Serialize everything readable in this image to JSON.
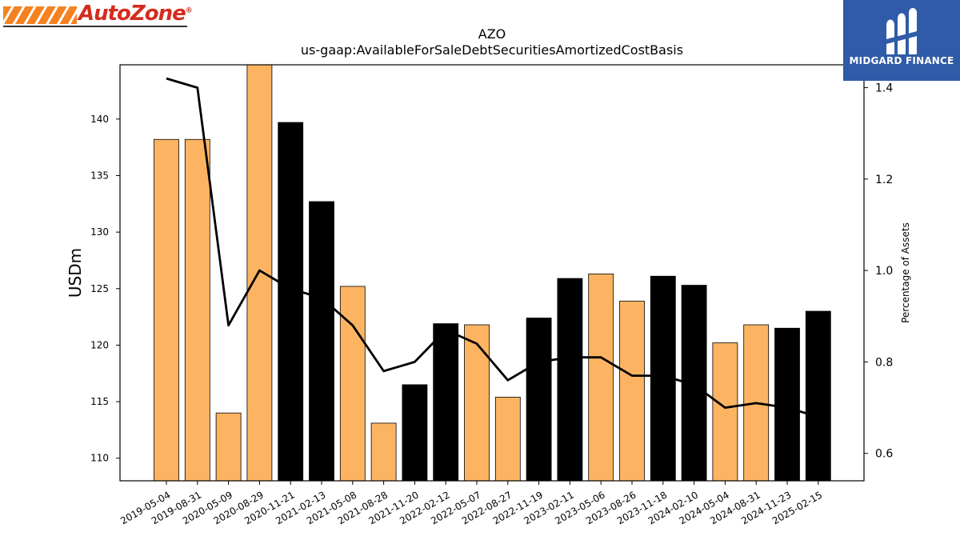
{
  "logos": {
    "left": {
      "text": "AutoZone",
      "mark": "trademark",
      "stripe_color": "#f58220",
      "text_color": "#d52b1e"
    },
    "right": {
      "text": "MIDGARD FINANCE",
      "background": "#2f5ba8",
      "icon": "midgard-m-icon"
    }
  },
  "chart_data": {
    "type": "bar",
    "title": "AZO",
    "subtitle": "us-gaap:AvailableForSaleDebtSecuritiesAmortizedCostBasis",
    "ylabel": "USDm",
    "y2label": "Percentage of Assets",
    "ylim": [
      108,
      144.8
    ],
    "y2lim": [
      0.54,
      1.45
    ],
    "yticks": [
      110,
      115,
      120,
      125,
      130,
      135,
      140
    ],
    "y2ticks": [
      0.6,
      0.8,
      1.0,
      1.2,
      1.4
    ],
    "categories": [
      "2019-05-04",
      "2019-08-31",
      "2020-05-09",
      "2020-08-29",
      "2020-11-21",
      "2021-02-13",
      "2021-05-08",
      "2021-08-28",
      "2021-11-20",
      "2022-02-12",
      "2022-05-07",
      "2022-08-27",
      "2022-11-19",
      "2023-02-11",
      "2023-05-06",
      "2023-08-26",
      "2023-11-18",
      "2024-02-10",
      "2024-05-04",
      "2024-08-31",
      "2024-11-23",
      "2025-02-15"
    ],
    "series": [
      {
        "type": "bar",
        "values": [
          138.2,
          138.2,
          114.0,
          144.8,
          139.7,
          132.7,
          125.2,
          113.1,
          116.5,
          121.9,
          121.8,
          115.4,
          122.4,
          125.9,
          126.3,
          123.9,
          126.1,
          125.3,
          120.2,
          121.8,
          121.5,
          123.0
        ],
        "colors": [
          "#fdb462",
          "#fdb462",
          "#fdb462",
          "#fdb462",
          "#000000",
          "#000000",
          "#fdb462",
          "#fdb462",
          "#000000",
          "#000000",
          "#fdb462",
          "#fdb462",
          "#000000",
          "#000000",
          "#fdb462",
          "#fdb462",
          "#000000",
          "#000000",
          "#fdb462",
          "#fdb462",
          "#000000",
          "#000000"
        ]
      },
      {
        "type": "line",
        "axis": "right",
        "color": "#000000",
        "values": [
          1.42,
          1.4,
          0.88,
          1.0,
          0.96,
          0.94,
          0.88,
          0.78,
          0.8,
          0.87,
          0.84,
          0.76,
          0.8,
          0.81,
          0.81,
          0.77,
          0.77,
          0.75,
          0.7,
          0.71,
          0.7,
          0.68
        ]
      }
    ],
    "grid": false,
    "legend": "none"
  }
}
